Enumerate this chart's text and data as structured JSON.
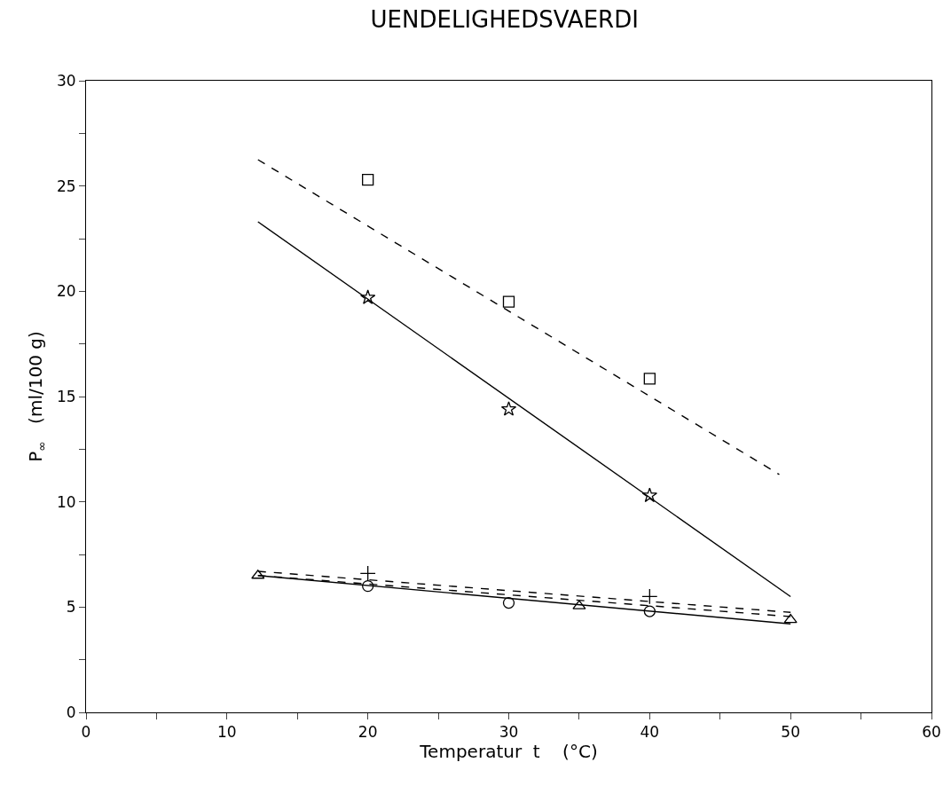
{
  "chart_data": {
    "type": "scatter",
    "title": "UENDELIGHEDSVAERDI",
    "xlabel": "Temperatur  t    (°C)",
    "ylabel": "P$_{∞}$   (ml/100 g)",
    "xlim": [
      0,
      60
    ],
    "ylim": [
      0,
      30
    ],
    "xticks": [
      0,
      {
        "value": 5,
        "label": null
      },
      10,
      {
        "value": 15,
        "label": null
      },
      20,
      {
        "value": 25,
        "label": null
      },
      30,
      {
        "value": 35,
        "label": null
      },
      40,
      {
        "value": 45,
        "label": null
      },
      50,
      {
        "value": 55,
        "label": null
      },
      60
    ],
    "yticks": [
      0,
      {
        "value": 2.5,
        "label": null
      },
      5,
      {
        "value": 7.5,
        "label": null
      },
      10,
      {
        "value": 12.5,
        "label": null
      },
      15,
      {
        "value": 17.5,
        "label": null
      },
      20,
      {
        "value": 22.5,
        "label": null
      },
      25,
      {
        "value": 27.5,
        "label": null
      },
      30
    ],
    "grid": false,
    "series": [
      {
        "type": "line",
        "color": "#000000",
        "marker": "none",
        "line_style": "dashed",
        "x": [
          12.2,
          49.2
        ],
        "values": [
          26.25,
          11.3
        ]
      },
      {
        "type": "line",
        "color": "#000000",
        "marker": "none",
        "line_style": "solid",
        "x": [
          12.2,
          50
        ],
        "values": [
          23.3,
          5.5
        ]
      },
      {
        "type": "line",
        "color": "#000000",
        "marker": "none",
        "line_style": "solid",
        "x": [
          12.2,
          50
        ],
        "values": [
          6.5,
          4.2
        ]
      },
      {
        "type": "line",
        "color": "#000000",
        "marker": "none",
        "line_style": "dashed",
        "x": [
          12.2,
          50
        ],
        "values": [
          6.7,
          4.75
        ]
      },
      {
        "type": "line",
        "color": "#000000",
        "marker": "none",
        "line_style": "dashed",
        "x": [
          12.2,
          50
        ],
        "values": [
          6.5,
          4.55
        ]
      },
      {
        "color": "#000000",
        "marker": "square",
        "x": [
          20,
          30,
          40
        ],
        "values": [
          25.3,
          19.5,
          15.85
        ]
      },
      {
        "color": "#000000",
        "marker": "star",
        "x": [
          20,
          30,
          40
        ],
        "values": [
          19.7,
          14.4,
          10.3
        ]
      },
      {
        "color": "#000000",
        "marker": "triangle",
        "x": [
          12.2,
          35,
          50
        ],
        "values": [
          6.5,
          5.05,
          4.4
        ]
      },
      {
        "color": "#000000",
        "marker": "circle",
        "x": [
          20,
          30,
          40
        ],
        "values": [
          6.0,
          5.2,
          4.8
        ]
      },
      {
        "color": "#000000",
        "marker": "cross",
        "x": [
          20,
          40
        ],
        "values": [
          6.6,
          5.5
        ]
      }
    ]
  }
}
